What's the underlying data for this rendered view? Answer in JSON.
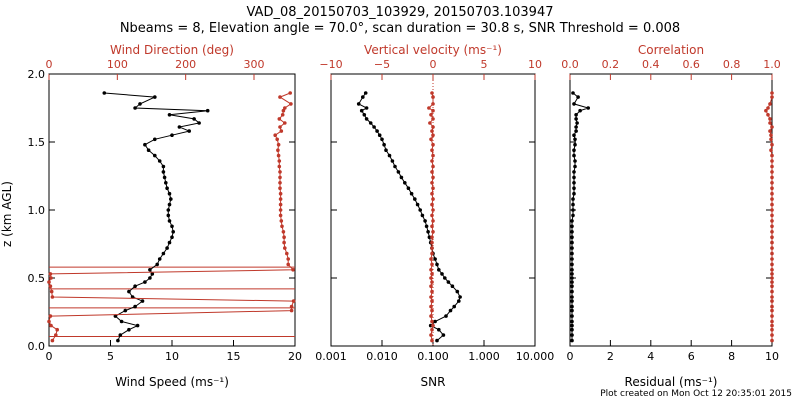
{
  "header": {
    "title_line1": "VAD_08_20150703_103929, 20150703.103947",
    "title_line2": "Nbeams = 8, Elevation angle = 70.0°, scan duration = 30.8 s, SNR Threshold = 0.008"
  },
  "footer": {
    "credit": "Plot created on Mon Oct 12 20:35:01 2015"
  },
  "colors": {
    "black": "#000000",
    "red": "#c0392b"
  },
  "chart_data": [
    {
      "type": "line",
      "title": "",
      "ylabel": "z (km AGL)",
      "ylim": [
        0,
        2.0
      ],
      "yticks": [
        "0.0",
        "0.5",
        "1.0",
        "1.5",
        "2.0"
      ],
      "bottom_axis": {
        "label": "Wind Speed (ms⁻¹)",
        "lim": [
          0,
          20
        ],
        "ticks": [
          "0",
          "5",
          "10",
          "15",
          "20"
        ]
      },
      "top_axis": {
        "label": "Wind Direction (deg)",
        "lim": [
          0,
          360
        ],
        "ticks": [
          "0",
          "100",
          "200",
          "300"
        ]
      },
      "series": [
        {
          "name": "Wind Speed",
          "axis": "bottom",
          "color": "black",
          "x": [
            5.6,
            5.8,
            6.5,
            7.2,
            5.9,
            5.4,
            6.2,
            7.0,
            7.6,
            6.8,
            6.5,
            7.0,
            7.8,
            8.2,
            8.4,
            8.2,
            8.8,
            9.0,
            9.3,
            9.6,
            9.8,
            10.0,
            10.1,
            10.0,
            9.8,
            9.7,
            9.7,
            9.8,
            9.9,
            9.8,
            9.6,
            9.5,
            9.4,
            9.3,
            9.3,
            9.0,
            8.6,
            8.1,
            7.8,
            8.6,
            10.0,
            11.4,
            10.6,
            12.2,
            11.8,
            9.8,
            12.9,
            7.0,
            7.4,
            8.6,
            4.5
          ],
          "y": [
            0.04,
            0.08,
            0.12,
            0.15,
            0.18,
            0.22,
            0.26,
            0.29,
            0.33,
            0.36,
            0.4,
            0.44,
            0.47,
            0.5,
            0.53,
            0.56,
            0.6,
            0.64,
            0.68,
            0.72,
            0.76,
            0.8,
            0.84,
            0.88,
            0.92,
            0.96,
            1.0,
            1.04,
            1.08,
            1.12,
            1.16,
            1.2,
            1.24,
            1.28,
            1.32,
            1.36,
            1.4,
            1.44,
            1.48,
            1.52,
            1.55,
            1.58,
            1.61,
            1.64,
            1.67,
            1.7,
            1.73,
            1.75,
            1.78,
            1.83,
            1.86
          ]
        },
        {
          "name": "Wind Direction",
          "axis": "top",
          "color": "red",
          "x": [
            5,
            10,
            12,
            3,
            0,
            2,
            355,
            355,
            358,
            5,
            4,
            2,
            0,
            3,
            2,
            357,
            350,
            350,
            348,
            345,
            344,
            344,
            343,
            341,
            340,
            339,
            339,
            339,
            339,
            339,
            338,
            338,
            338,
            338,
            337,
            337,
            336,
            335,
            336,
            334,
            331,
            340,
            338,
            345,
            337,
            342,
            343,
            345,
            354,
            338,
            353
          ],
          "y": [
            0.04,
            0.08,
            0.12,
            0.15,
            0.18,
            0.22,
            0.26,
            0.29,
            0.33,
            0.36,
            0.4,
            0.44,
            0.47,
            0.5,
            0.53,
            0.56,
            0.6,
            0.64,
            0.68,
            0.72,
            0.76,
            0.8,
            0.84,
            0.88,
            0.92,
            0.96,
            1.0,
            1.04,
            1.08,
            1.12,
            1.16,
            1.2,
            1.24,
            1.28,
            1.32,
            1.36,
            1.4,
            1.44,
            1.48,
            1.52,
            1.55,
            1.58,
            1.61,
            1.64,
            1.67,
            1.7,
            1.73,
            1.75,
            1.78,
            1.83,
            1.86
          ]
        }
      ],
      "horizontal_lines": [
        0.07,
        0.28,
        0.42,
        0.58
      ]
    },
    {
      "type": "line",
      "ylim": [
        0,
        2.0
      ],
      "bottom_axis": {
        "label": "SNR",
        "scale": "log",
        "lim": [
          0.001,
          10
        ],
        "ticks": [
          "0.001",
          "0.010",
          "0.100",
          "1.000",
          "10.000"
        ]
      },
      "top_axis": {
        "label": "Vertical velocity (ms⁻¹)",
        "lim": [
          -10,
          10
        ],
        "ticks": [
          "−10",
          "−5",
          "0",
          "5",
          "10"
        ]
      },
      "series": [
        {
          "name": "SNR",
          "axis": "bottom",
          "color": "black",
          "x": [
            0.12,
            0.16,
            0.13,
            0.09,
            0.11,
            0.18,
            0.22,
            0.26,
            0.32,
            0.34,
            0.3,
            0.24,
            0.2,
            0.17,
            0.15,
            0.13,
            0.12,
            0.11,
            0.1,
            0.095,
            0.09,
            0.085,
            0.08,
            0.075,
            0.07,
            0.062,
            0.056,
            0.05,
            0.044,
            0.038,
            0.033,
            0.028,
            0.024,
            0.021,
            0.018,
            0.016,
            0.014,
            0.012,
            0.011,
            0.01,
            0.009,
            0.008,
            0.007,
            0.006,
            0.005,
            0.0045,
            0.004,
            0.005,
            0.0035,
            0.0042,
            0.0048
          ],
          "y": [
            0.04,
            0.08,
            0.12,
            0.15,
            0.18,
            0.22,
            0.26,
            0.29,
            0.33,
            0.36,
            0.4,
            0.44,
            0.47,
            0.5,
            0.53,
            0.56,
            0.6,
            0.64,
            0.68,
            0.72,
            0.76,
            0.8,
            0.84,
            0.88,
            0.92,
            0.96,
            1.0,
            1.04,
            1.08,
            1.12,
            1.16,
            1.2,
            1.24,
            1.28,
            1.32,
            1.36,
            1.4,
            1.44,
            1.48,
            1.52,
            1.55,
            1.58,
            1.61,
            1.64,
            1.67,
            1.7,
            1.73,
            1.75,
            1.78,
            1.83,
            1.86
          ]
        },
        {
          "name": "Vertical velocity",
          "axis": "top",
          "color": "red",
          "x": [
            -0.1,
            -0.2,
            -0.1,
            0,
            -0.1,
            -0.2,
            -0.1,
            -0.2,
            -0.1,
            -0.2,
            -0.1,
            -0.2,
            -0.1,
            -0.2,
            -0.1,
            -0.2,
            -0.1,
            -0.2,
            -0.1,
            -0.1,
            -0.1,
            -0.1,
            0,
            -0.1,
            0,
            -0.1,
            0,
            -0.1,
            0,
            -0.1,
            0,
            -0.1,
            0,
            -0.1,
            0,
            -0.1,
            0,
            -0.1,
            0,
            -0.2,
            0,
            -0.1,
            0,
            -0.3,
            0,
            -0.2,
            0,
            -0.4,
            0,
            0,
            -0.1
          ],
          "y": [
            0.04,
            0.08,
            0.12,
            0.15,
            0.18,
            0.22,
            0.26,
            0.29,
            0.33,
            0.36,
            0.4,
            0.44,
            0.47,
            0.5,
            0.53,
            0.56,
            0.6,
            0.64,
            0.68,
            0.72,
            0.76,
            0.8,
            0.84,
            0.88,
            0.92,
            0.96,
            1.0,
            1.04,
            1.08,
            1.12,
            1.16,
            1.2,
            1.24,
            1.28,
            1.32,
            1.36,
            1.4,
            1.44,
            1.48,
            1.52,
            1.55,
            1.58,
            1.61,
            1.64,
            1.67,
            1.7,
            1.73,
            1.75,
            1.78,
            1.83,
            1.86
          ]
        }
      ],
      "vertical_lines": [
        0
      ]
    },
    {
      "type": "line",
      "ylim": [
        0,
        2.0
      ],
      "bottom_axis": {
        "label": "Residual (ms⁻¹)",
        "lim": [
          0,
          10
        ],
        "ticks": [
          "0",
          "2",
          "4",
          "6",
          "8",
          "10"
        ]
      },
      "top_axis": {
        "label": "Correlation",
        "lim": [
          0,
          1.0
        ],
        "ticks": [
          "0.0",
          "0.2",
          "0.4",
          "0.6",
          "0.8",
          "1.0"
        ]
      },
      "series": [
        {
          "name": "Residual",
          "axis": "bottom",
          "color": "black",
          "x": [
            0.1,
            0.1,
            0.1,
            0.1,
            0.1,
            0.1,
            0.1,
            0.1,
            0.1,
            0.1,
            0.1,
            0.1,
            0.1,
            0.1,
            0.1,
            0.1,
            0.1,
            0.1,
            0.1,
            0.1,
            0.1,
            0.1,
            0.1,
            0.1,
            0.1,
            0.15,
            0.15,
            0.15,
            0.15,
            0.2,
            0.2,
            0.2,
            0.2,
            0.2,
            0.25,
            0.25,
            0.2,
            0.2,
            0.25,
            0.25,
            0.2,
            0.3,
            0.3,
            0.35,
            0.3,
            0.3,
            0.5,
            0.9,
            0.2,
            0.4,
            0.15
          ],
          "y": [
            0.04,
            0.08,
            0.12,
            0.15,
            0.18,
            0.22,
            0.26,
            0.29,
            0.33,
            0.36,
            0.4,
            0.44,
            0.47,
            0.5,
            0.53,
            0.56,
            0.6,
            0.64,
            0.68,
            0.72,
            0.76,
            0.8,
            0.84,
            0.88,
            0.92,
            0.96,
            1.0,
            1.04,
            1.08,
            1.12,
            1.16,
            1.2,
            1.24,
            1.28,
            1.32,
            1.36,
            1.4,
            1.44,
            1.48,
            1.52,
            1.55,
            1.58,
            1.61,
            1.64,
            1.67,
            1.7,
            1.73,
            1.75,
            1.78,
            1.83,
            1.86
          ]
        },
        {
          "name": "Correlation",
          "axis": "top",
          "color": "red",
          "x": [
            1.0,
            1.0,
            1.0,
            1.0,
            1.0,
            1.0,
            1.0,
            1.0,
            1.0,
            1.0,
            1.0,
            1.0,
            1.0,
            1.0,
            1.0,
            1.0,
            1.0,
            1.0,
            1.0,
            1.0,
            1.0,
            1.0,
            1.0,
            1.0,
            1.0,
            1.0,
            1.0,
            1.0,
            1.0,
            1.0,
            1.0,
            1.0,
            1.0,
            1.0,
            1.0,
            1.0,
            1.0,
            0.995,
            1.0,
            0.995,
            0.995,
            0.99,
            1.0,
            0.99,
            0.99,
            0.98,
            0.97,
            0.98,
            0.99,
            1.0,
            1.0
          ],
          "y": [
            0.04,
            0.08,
            0.12,
            0.15,
            0.18,
            0.22,
            0.26,
            0.29,
            0.33,
            0.36,
            0.4,
            0.44,
            0.47,
            0.5,
            0.53,
            0.56,
            0.6,
            0.64,
            0.68,
            0.72,
            0.76,
            0.8,
            0.84,
            0.88,
            0.92,
            0.96,
            1.0,
            1.04,
            1.08,
            1.12,
            1.16,
            1.2,
            1.24,
            1.28,
            1.32,
            1.36,
            1.4,
            1.44,
            1.48,
            1.52,
            1.55,
            1.58,
            1.61,
            1.64,
            1.67,
            1.7,
            1.73,
            1.75,
            1.78,
            1.83,
            1.86
          ]
        }
      ]
    }
  ]
}
